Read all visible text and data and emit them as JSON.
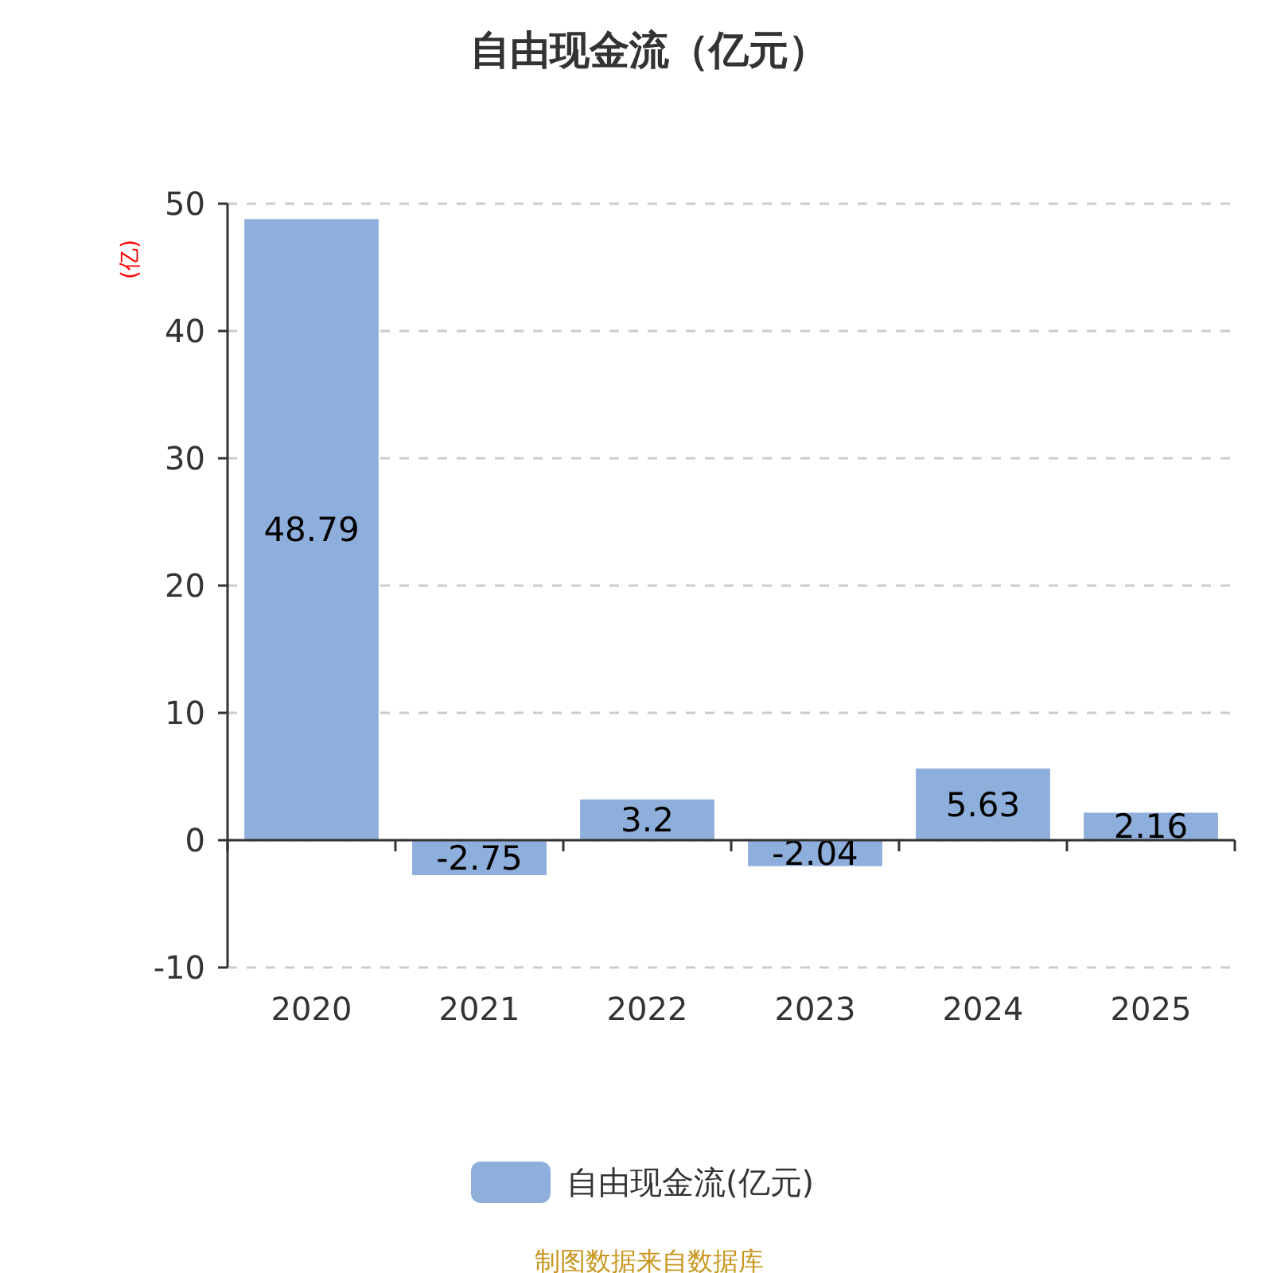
{
  "chart_data": {
    "type": "bar",
    "title": "自由现金流（亿元）",
    "ylabel": "(亿)",
    "categories": [
      "2020",
      "2021",
      "2022",
      "2023",
      "2024",
      "2025"
    ],
    "series": [
      {
        "name": "自由现金流(亿元)",
        "color": "#8eaedb",
        "values": [
          48.79,
          -2.75,
          3.2,
          -2.04,
          5.63,
          2.16
        ]
      }
    ],
    "ylim": [
      -10,
      50
    ],
    "yticks": [
      -10,
      0,
      10,
      20,
      30,
      40,
      50
    ],
    "grid": "y",
    "legend": "bottom",
    "data_labels": true,
    "annotations": [
      "制图数据来自数据库"
    ]
  }
}
